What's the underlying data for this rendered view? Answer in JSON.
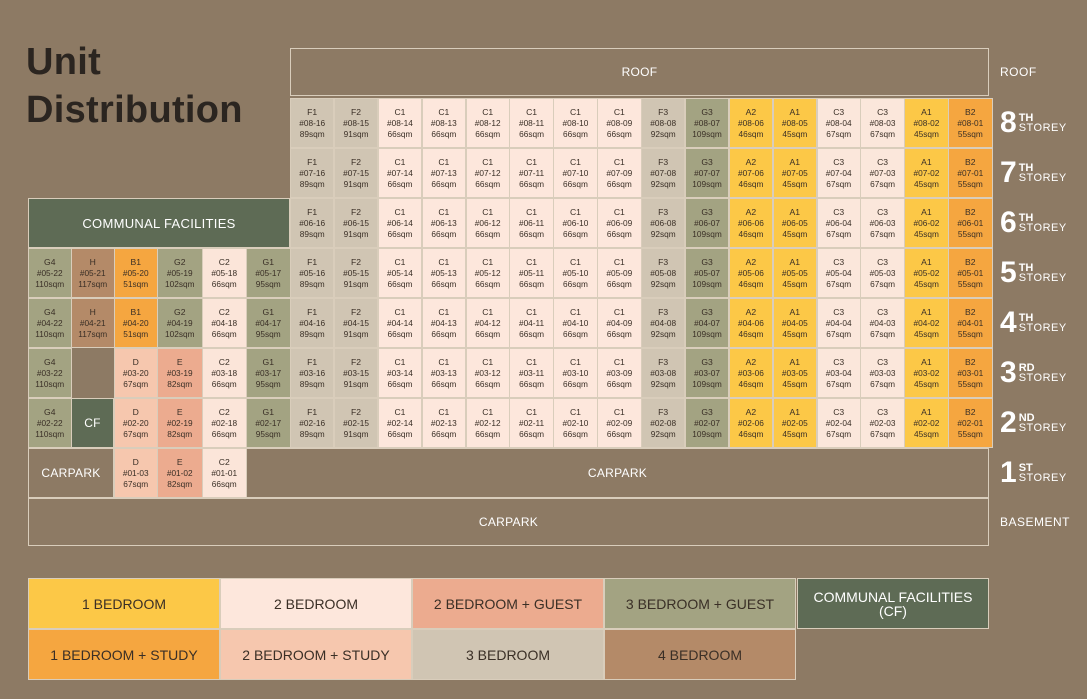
{
  "title": [
    "Unit",
    "Distribution"
  ],
  "colors": {
    "background": "#8d7a64",
    "A": "#fcc847",
    "B": "#f5a640",
    "C1": "#fde7dc",
    "C2": "#fbe5d9",
    "C3": "#fbe7db",
    "D": "#f6c7ae",
    "E": "#ecab8f",
    "F": "#d0c5b3",
    "G": "#a3a382",
    "H": "#b48a68",
    "CF": "#5e6b55"
  },
  "storeys": [
    {
      "level": "8",
      "ordinal": "TH",
      "word": "STOREY"
    },
    {
      "level": "7",
      "ordinal": "TH",
      "word": "STOREY"
    },
    {
      "level": "6",
      "ordinal": "TH",
      "word": "STOREY"
    },
    {
      "level": "5",
      "ordinal": "TH",
      "word": "STOREY"
    },
    {
      "level": "4",
      "ordinal": "TH",
      "word": "STOREY"
    },
    {
      "level": "3",
      "ordinal": "RD",
      "word": "STOREY"
    },
    {
      "level": "2",
      "ordinal": "ND",
      "word": "STOREY"
    },
    {
      "level": "1",
      "ordinal": "ST",
      "word": "STOREY"
    }
  ],
  "side_labels": {
    "roof": "ROOF",
    "basement": "BASEMENT"
  },
  "blocks": {
    "roof": "ROOF",
    "communal": "COMMUNAL FACILITIES",
    "cf": "CF",
    "carpark_left": "CARPARK",
    "carpark_right": "CARPARK",
    "carpark_basement": "CARPARK"
  },
  "main_stack": [
    {
      "type": "F1",
      "stack": "16",
      "size": "89sqm",
      "color": "F"
    },
    {
      "type": "F2",
      "stack": "15",
      "size": "91sqm",
      "color": "F"
    },
    {
      "type": "C1",
      "stack": "14",
      "size": "66sqm",
      "color": "C1"
    },
    {
      "type": "C1",
      "stack": "13",
      "size": "66sqm",
      "color": "C1"
    },
    {
      "type": "C1",
      "stack": "12",
      "size": "66sqm",
      "color": "C1"
    },
    {
      "type": "C1",
      "stack": "11",
      "size": "66sqm",
      "color": "C1"
    },
    {
      "type": "C1",
      "stack": "10",
      "size": "66sqm",
      "color": "C1"
    },
    {
      "type": "C1",
      "stack": "09",
      "size": "66sqm",
      "color": "C1"
    },
    {
      "type": "F3",
      "stack": "08",
      "size": "92sqm",
      "color": "F"
    },
    {
      "type": "G3",
      "stack": "07",
      "size": "109sqm",
      "color": "G"
    },
    {
      "type": "A2",
      "stack": "06",
      "size": "46sqm",
      "color": "A"
    },
    {
      "type": "A1",
      "stack": "05",
      "size": "45sqm",
      "color": "A"
    },
    {
      "type": "C3",
      "stack": "04",
      "size": "67sqm",
      "color": "C3"
    },
    {
      "type": "C3",
      "stack": "03",
      "size": "67sqm",
      "color": "C3"
    },
    {
      "type": "A1",
      "stack": "02",
      "size": "45sqm",
      "color": "A"
    },
    {
      "type": "B2",
      "stack": "01",
      "size": "55sqm",
      "color": "B"
    }
  ],
  "left_units": {
    "5": [
      {
        "type": "G4",
        "code": "#05-22",
        "size": "110sqm",
        "color": "G"
      },
      {
        "type": "H",
        "code": "#05-21",
        "size": "117sqm",
        "color": "H"
      },
      {
        "type": "B1",
        "code": "#05-20",
        "size": "51sqm",
        "color": "B"
      },
      {
        "type": "G2",
        "code": "#05-19",
        "size": "102sqm",
        "color": "G"
      },
      {
        "type": "C2",
        "code": "#05-18",
        "size": "66sqm",
        "color": "C2"
      },
      {
        "type": "G1",
        "code": "#05-17",
        "size": "95sqm",
        "color": "G"
      }
    ],
    "4": [
      {
        "type": "G4",
        "code": "#04-22",
        "size": "110sqm",
        "color": "G"
      },
      {
        "type": "H",
        "code": "#04-21",
        "size": "117sqm",
        "color": "H"
      },
      {
        "type": "B1",
        "code": "#04-20",
        "size": "51sqm",
        "color": "B"
      },
      {
        "type": "G2",
        "code": "#04-19",
        "size": "102sqm",
        "color": "G"
      },
      {
        "type": "C2",
        "code": "#04-18",
        "size": "66sqm",
        "color": "C2"
      },
      {
        "type": "G1",
        "code": "#04-17",
        "size": "95sqm",
        "color": "G"
      }
    ],
    "3": [
      {
        "type": "G4",
        "code": "#03-22",
        "size": "110sqm",
        "color": "G"
      },
      null,
      {
        "type": "D",
        "code": "#03-20",
        "size": "67sqm",
        "color": "D"
      },
      {
        "type": "E",
        "code": "#03-19",
        "size": "82sqm",
        "color": "E"
      },
      {
        "type": "C2",
        "code": "#03-18",
        "size": "66sqm",
        "color": "C2"
      },
      {
        "type": "G1",
        "code": "#03-17",
        "size": "95sqm",
        "color": "G"
      }
    ],
    "2": [
      {
        "type": "G4",
        "code": "#02-22",
        "size": "110sqm",
        "color": "G"
      },
      "CF",
      {
        "type": "D",
        "code": "#02-20",
        "size": "67sqm",
        "color": "D"
      },
      {
        "type": "E",
        "code": "#02-19",
        "size": "82sqm",
        "color": "E"
      },
      {
        "type": "C2",
        "code": "#02-18",
        "size": "66sqm",
        "color": "C2"
      },
      {
        "type": "G1",
        "code": "#02-17",
        "size": "95sqm",
        "color": "G"
      }
    ],
    "1": [
      {
        "type": "D",
        "code": "#01-03",
        "size": "67sqm",
        "color": "D"
      },
      {
        "type": "E",
        "code": "#01-02",
        "size": "82sqm",
        "color": "E"
      },
      {
        "type": "C2",
        "code": "#01-01",
        "size": "66sqm",
        "color": "C2"
      }
    ]
  },
  "legend": [
    {
      "label": "1 BEDROOM",
      "color": "#fcc847",
      "text": "#3a2f26"
    },
    {
      "label": "2 BEDROOM",
      "color": "#fde7dc",
      "text": "#3a2f26"
    },
    {
      "label": "2 BEDROOM + GUEST",
      "color": "#ecab8f",
      "text": "#3a2f26"
    },
    {
      "label": "3 BEDROOM + GUEST",
      "color": "#a3a382",
      "text": "#3a2f26"
    },
    {
      "label": "COMMUNAL FACILITIES\n(CF)",
      "color": "#5e6b55",
      "text": "#ffffff"
    },
    {
      "label": "1 BEDROOM + STUDY",
      "color": "#f5a640",
      "text": "#3a2f26"
    },
    {
      "label": "2 BEDROOM + STUDY",
      "color": "#f6c7ae",
      "text": "#3a2f26"
    },
    {
      "label": "3 BEDROOM",
      "color": "#d0c5b3",
      "text": "#3a2f26"
    },
    {
      "label": "4 BEDROOM",
      "color": "#b48a68",
      "text": "#3a2f26"
    }
  ]
}
